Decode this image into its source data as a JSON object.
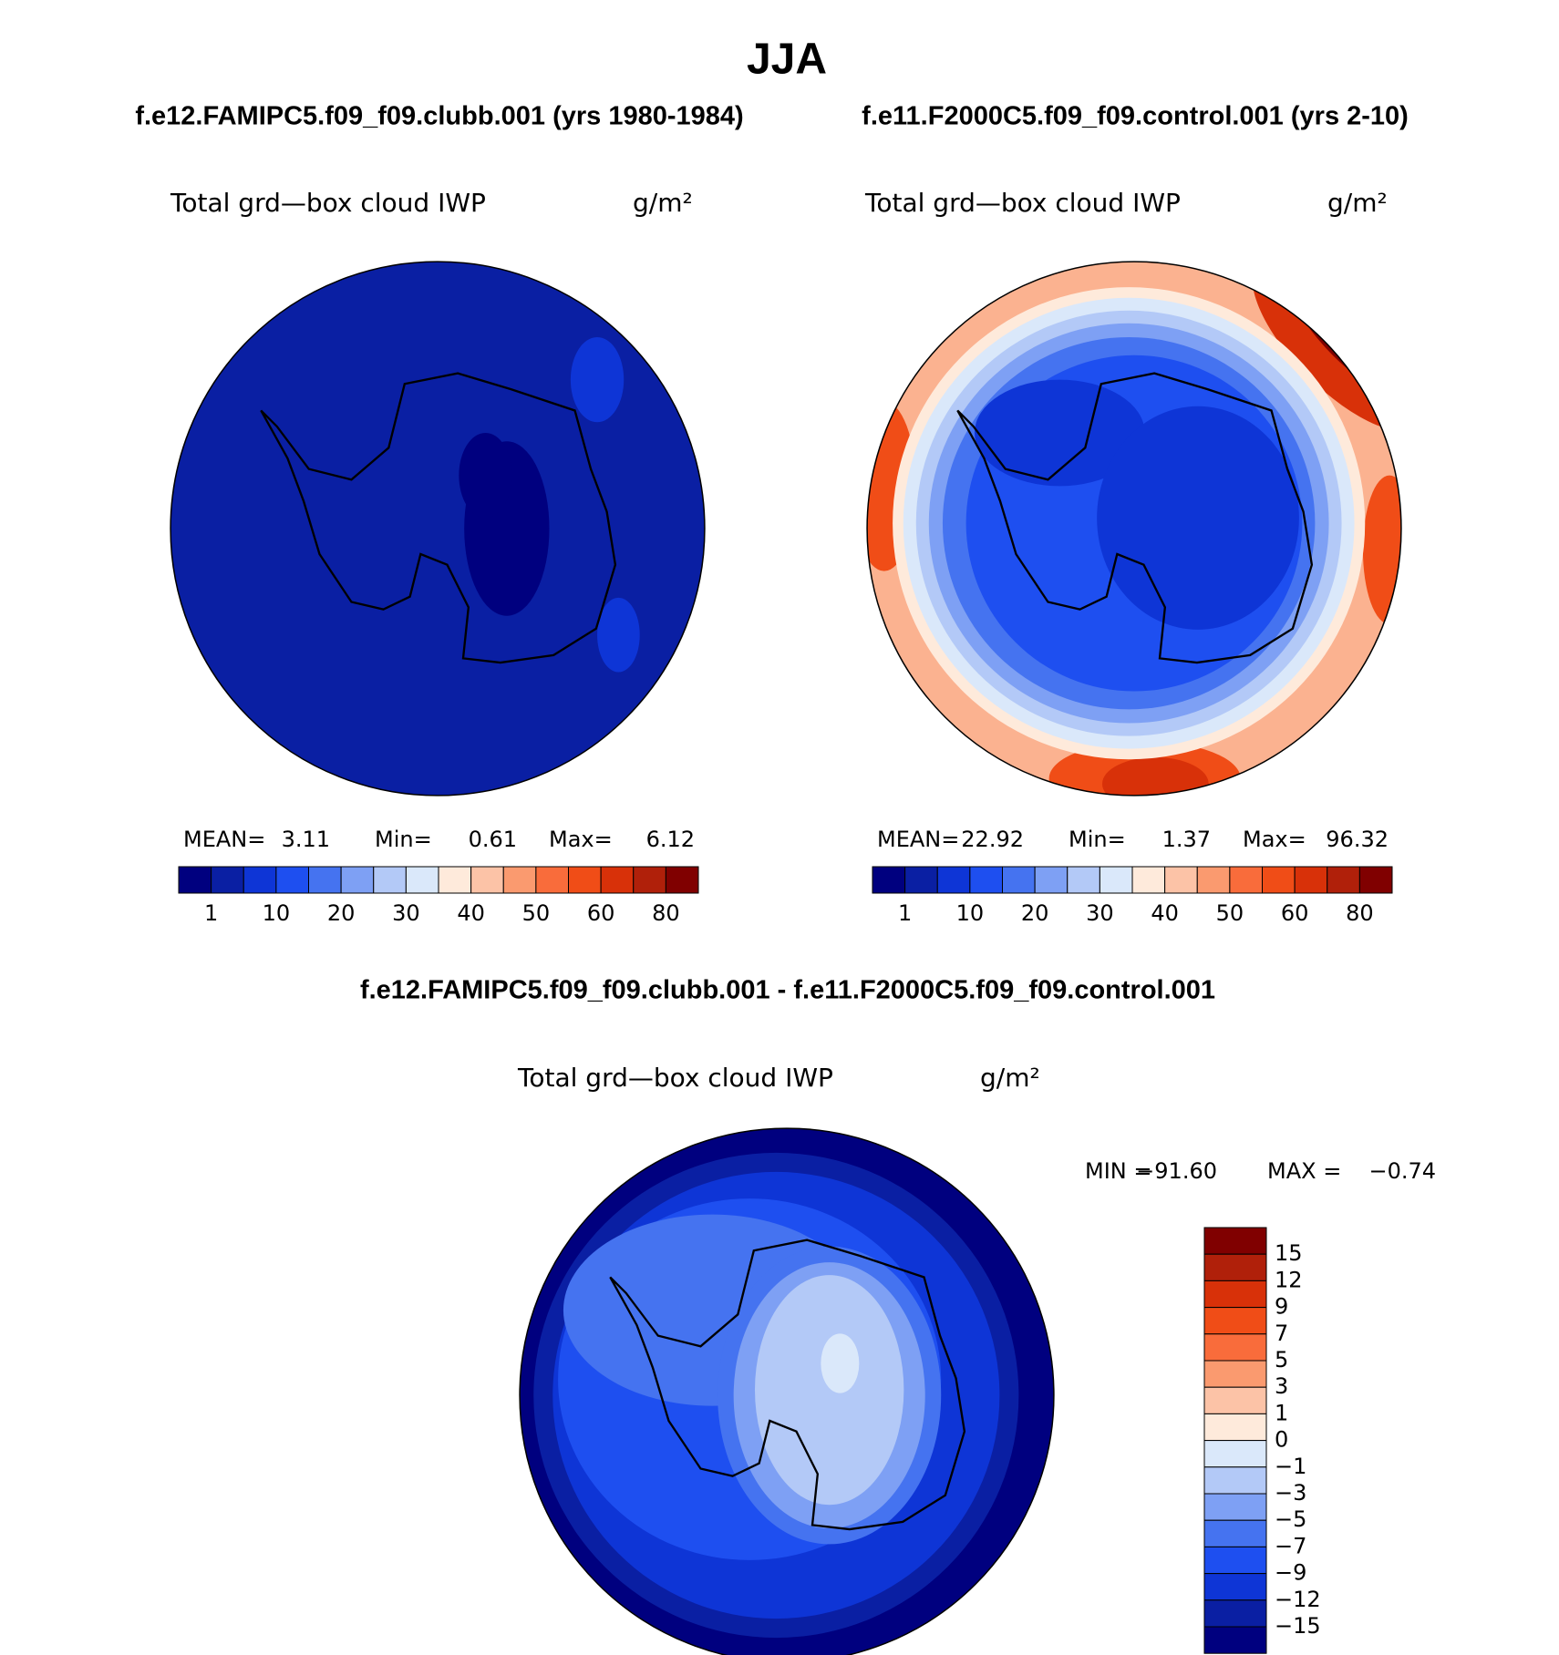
{
  "title": "JJA",
  "panels": [
    {
      "subtitle": "f.e12.FAMIPC5.f09_f09.clubb.001 (yrs 1980-1984)",
      "field_label": "Total grd—box cloud IWP",
      "units": "g/m²",
      "stats": [
        {
          "label": "MEAN=",
          "value": "3.11"
        },
        {
          "label": "Min=",
          "value": "0.61"
        },
        {
          "label": "Max=",
          "value": "6.12"
        }
      ],
      "colorbar": {
        "labels": [
          "1",
          "10",
          "20",
          "30",
          "40",
          "50",
          "60",
          "80"
        ]
      }
    },
    {
      "subtitle": "f.e11.F2000C5.f09_f09.control.001 (yrs 2-10)",
      "field_label": "Total grd—box cloud IWP",
      "units": "g/m²",
      "stats": [
        {
          "label": "MEAN=",
          "value": "22.92"
        },
        {
          "label": "Min=",
          "value": "1.37"
        },
        {
          "label": "Max=",
          "value": "96.32"
        }
      ],
      "colorbar": {
        "labels": [
          "1",
          "10",
          "20",
          "30",
          "40",
          "50",
          "60",
          "80"
        ]
      }
    }
  ],
  "colors": [
    "#00007f",
    "#0a1fa3",
    "#0e35d6",
    "#1e4ff0",
    "#4573f0",
    "#7ea0f4",
    "#b3c9f7",
    "#dae8fa",
    "#feeadb",
    "#fcc3a7",
    "#fa9a6f",
    "#f96c3b",
    "#f04d17",
    "#d83109",
    "#b0200a",
    "#800000"
  ],
  "difference": {
    "subtitle": "f.e12.FAMIPC5.f09_f09.clubb.001 - f.e11.F2000C5.f09_f09.control.001",
    "field_label": "Total grd—box cloud IWP",
    "units": "g/m²",
    "stats": [
      {
        "label": "MIN =",
        "value": "−91.60"
      },
      {
        "label": "MAX =",
        "value": "−0.74"
      }
    ],
    "colorbar": {
      "labels": [
        "15",
        "12",
        "9",
        "7",
        "5",
        "3",
        "1",
        "0",
        "−1",
        "−3",
        "−5",
        "−7",
        "−9",
        "−12",
        "−15"
      ]
    }
  }
}
